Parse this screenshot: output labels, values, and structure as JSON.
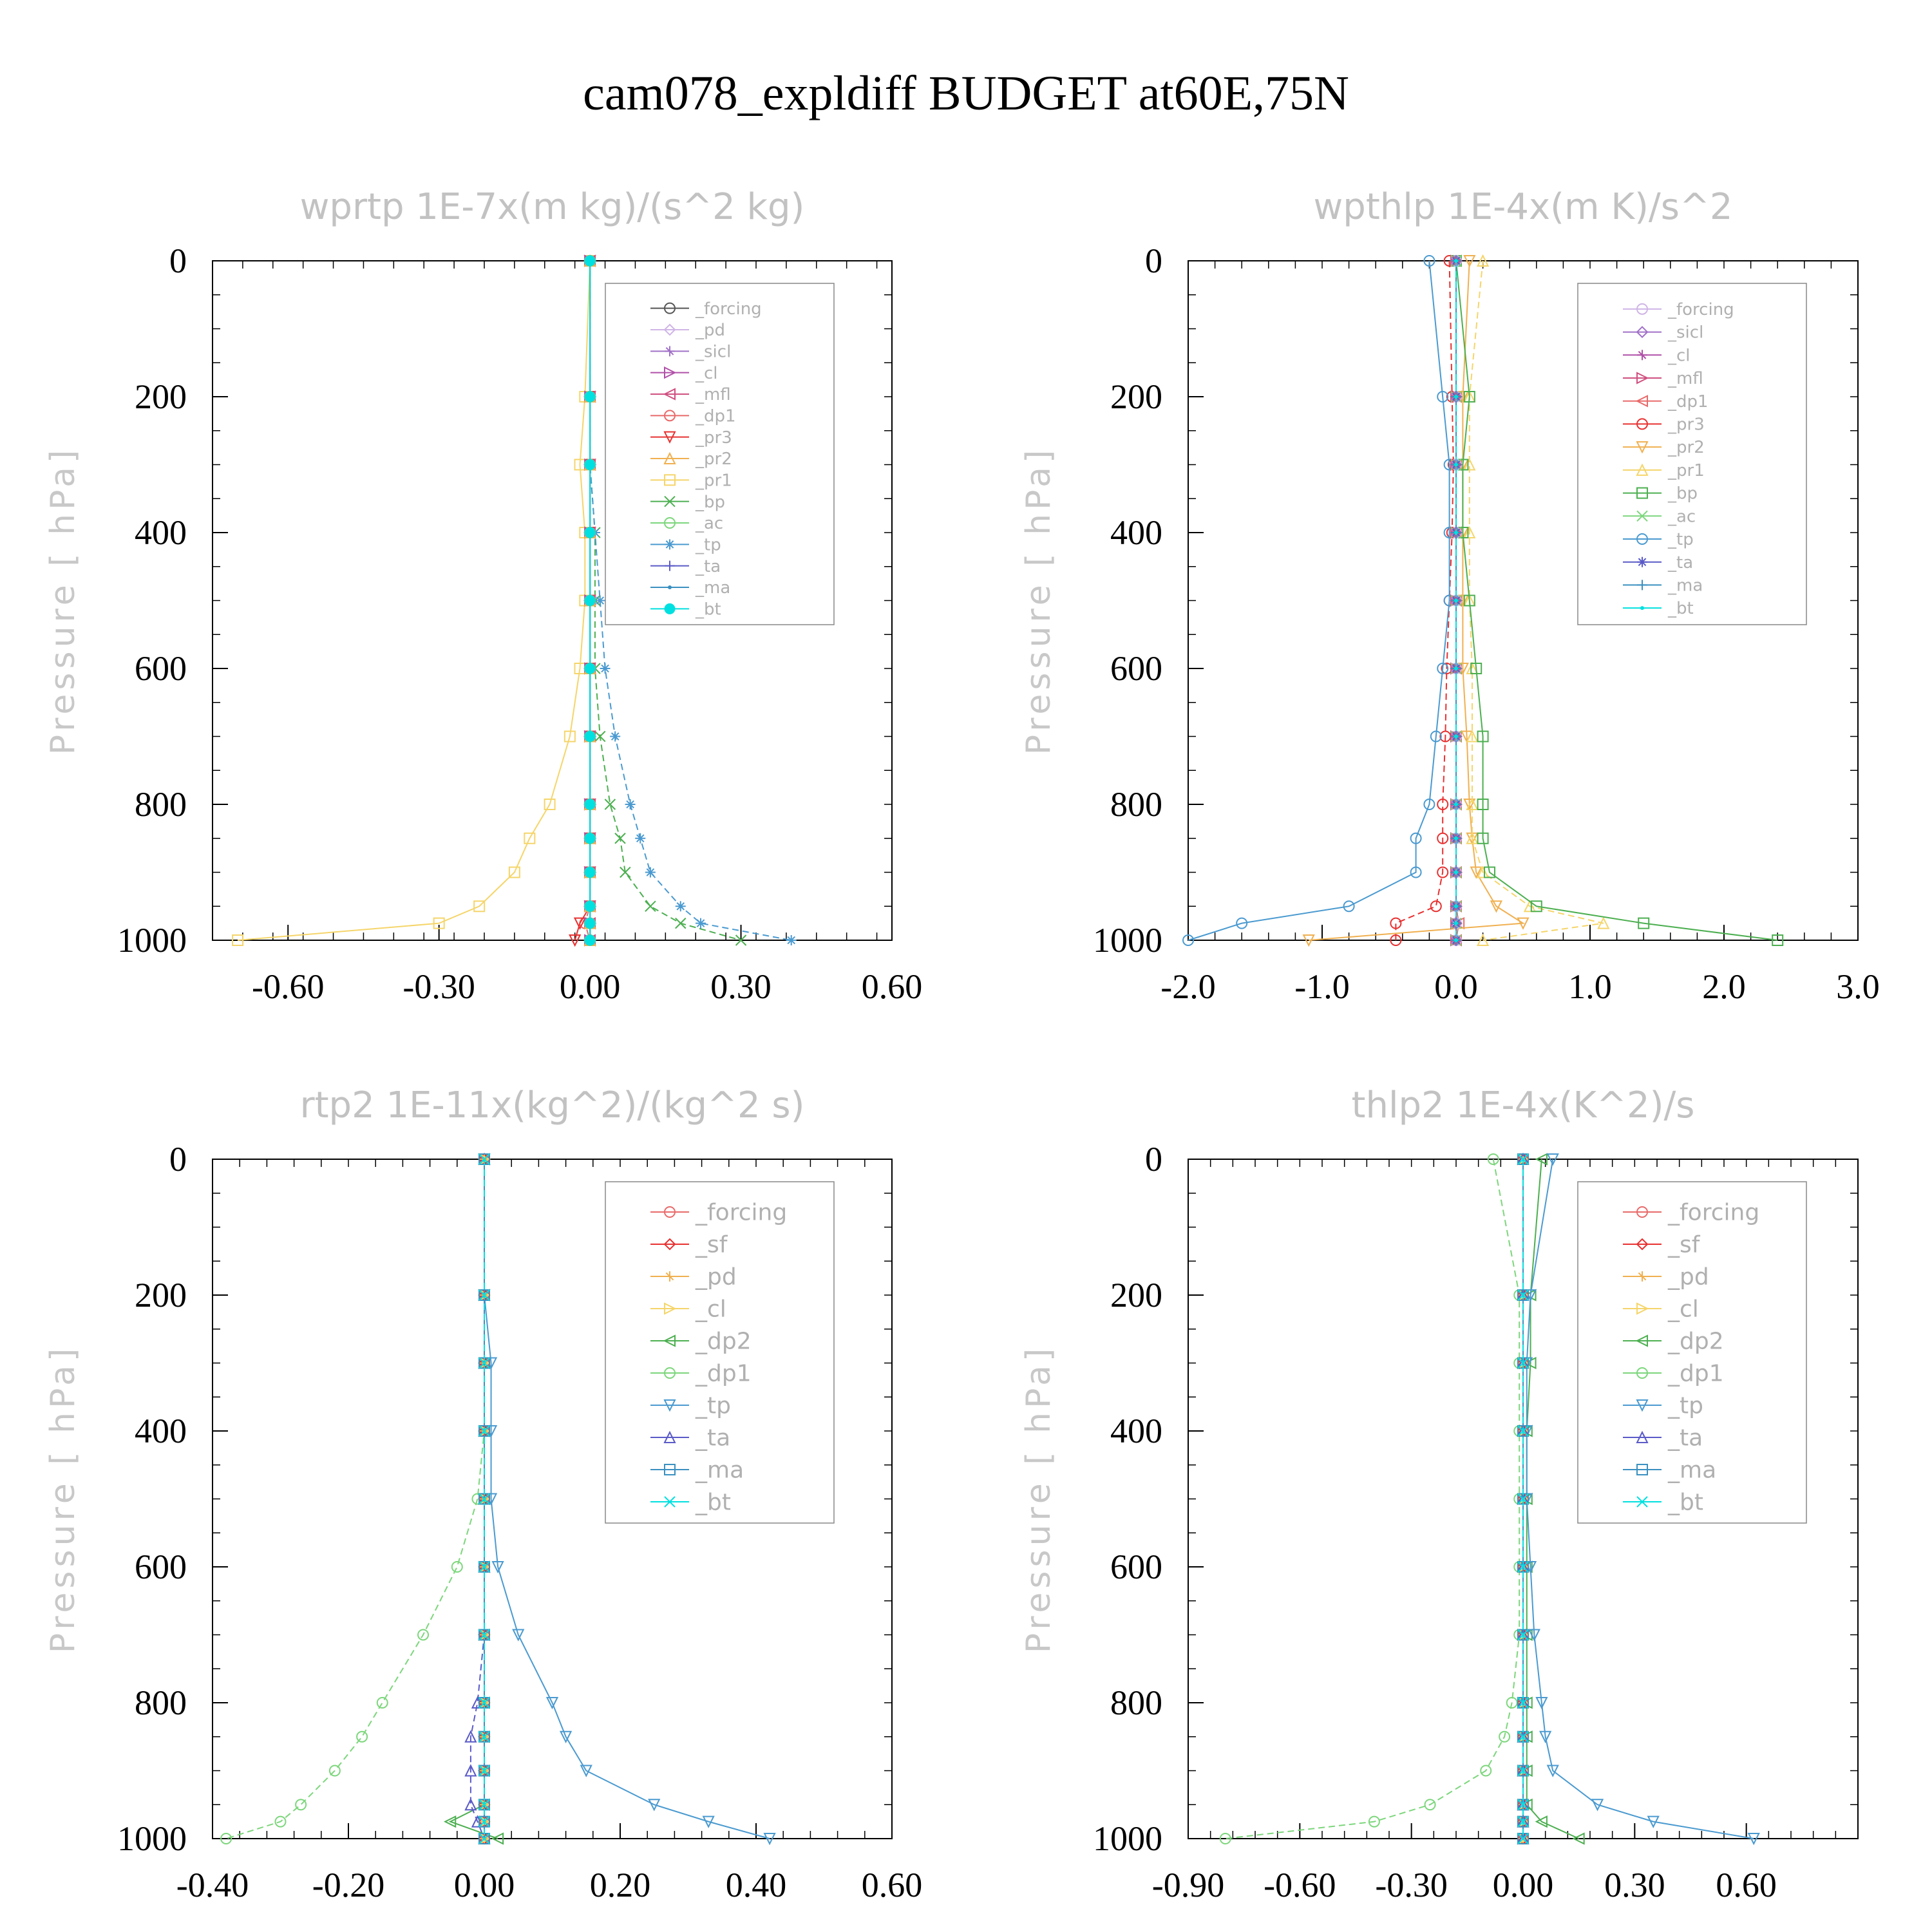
{
  "title": "cam078_expldiff  BUDGET at60E,75N",
  "chart_data": [
    {
      "type": "line",
      "title": "wprtp  1E-7x(m kg)/(s^2 kg)",
      "ylabel": "Pressure [ hPa]",
      "xlabel": "",
      "xlim": [
        -0.75,
        0.6
      ],
      "ylim": [
        1000,
        0
      ],
      "xticks": [
        "-0.60",
        "-0.30",
        "0.00",
        "0.30",
        "0.60"
      ],
      "xtick_values": [
        -0.6,
        -0.3,
        0.0,
        0.3,
        0.6
      ],
      "yticks": [
        "0",
        "200",
        "400",
        "600",
        "800",
        "1000"
      ],
      "yvalues": [
        0,
        200,
        300,
        400,
        500,
        600,
        700,
        800,
        850,
        900,
        950,
        975,
        1000
      ],
      "legend_position": "top-right",
      "series": [
        {
          "name": "_forcing",
          "color": "#555555",
          "values": [
            0,
            0,
            0,
            0,
            0,
            0,
            0,
            0,
            0,
            0,
            0,
            0,
            0
          ]
        },
        {
          "name": "_pd",
          "color": "#cfb5e6",
          "values": [
            0,
            0,
            0,
            0,
            0,
            0,
            0,
            0,
            0,
            0,
            0,
            0,
            0
          ]
        },
        {
          "name": "_sicl",
          "color": "#a070c8",
          "values": [
            0,
            0,
            0,
            0,
            0,
            0,
            0,
            0,
            0,
            0,
            0,
            0,
            0
          ]
        },
        {
          "name": "_cl",
          "color": "#b050a8",
          "values": [
            0,
            0,
            0,
            0,
            0,
            0,
            0,
            0,
            0,
            0,
            0,
            0,
            0
          ]
        },
        {
          "name": "_mfl",
          "color": "#d05080",
          "values": [
            0,
            0,
            0,
            0,
            0,
            0,
            0,
            0,
            0,
            0,
            0,
            0,
            0
          ]
        },
        {
          "name": "_dp1",
          "color": "#e86a6a",
          "values": [
            0,
            0,
            0,
            0,
            0,
            0,
            0,
            0,
            0,
            0,
            0,
            -0.01,
            0
          ]
        },
        {
          "name": "_pr3",
          "color": "#e83030",
          "values": [
            0,
            0,
            0,
            0,
            0,
            0,
            0,
            0,
            0,
            0,
            0,
            -0.02,
            -0.03
          ]
        },
        {
          "name": "_pr2",
          "color": "#f0b050",
          "values": [
            0,
            0,
            0,
            0,
            0,
            0,
            0,
            0,
            0,
            0,
            0,
            0,
            0
          ]
        },
        {
          "name": "_pr1",
          "color": "#f5d56a",
          "values": [
            0,
            -0.01,
            -0.02,
            -0.01,
            -0.01,
            -0.02,
            -0.04,
            -0.08,
            -0.12,
            -0.15,
            -0.22,
            -0.3,
            -0.7
          ]
        },
        {
          "name": "_bp",
          "color": "#4caf50",
          "values": [
            0,
            0,
            0,
            0.01,
            0.01,
            0.01,
            0.02,
            0.04,
            0.06,
            0.07,
            0.12,
            0.18,
            0.3
          ]
        },
        {
          "name": "_ac",
          "color": "#7cd67c",
          "values": [
            0,
            0,
            0,
            0,
            0,
            0,
            0,
            0,
            0,
            0,
            0,
            0,
            0
          ]
        },
        {
          "name": "_tp",
          "color": "#4a9ad0",
          "values": [
            0,
            0,
            0,
            0.01,
            0.02,
            0.03,
            0.05,
            0.08,
            0.1,
            0.12,
            0.18,
            0.22,
            0.4
          ]
        },
        {
          "name": "_ta",
          "color": "#5a5ac8",
          "values": [
            0,
            0,
            0,
            0,
            0,
            0,
            0,
            0,
            0,
            0,
            0,
            0,
            0
          ]
        },
        {
          "name": "_ma",
          "color": "#3a90c0",
          "values": [
            0,
            0,
            0,
            0,
            0,
            0,
            0,
            0,
            0,
            0,
            0,
            0,
            0
          ]
        },
        {
          "name": "_bt",
          "color": "#00e0e0",
          "values": [
            0,
            0,
            0,
            0,
            0,
            0,
            0,
            0,
            0,
            0,
            0,
            0,
            0
          ]
        }
      ]
    },
    {
      "type": "line",
      "title": "wpthlp  1E-4x(m K)/s^2",
      "ylabel": "Pressure [ hPa]",
      "xlabel": "",
      "xlim": [
        -2.0,
        3.0
      ],
      "ylim": [
        1000,
        0
      ],
      "xticks": [
        "-2.0",
        "-1.0",
        "0.0",
        "1.0",
        "2.0",
        "3.0"
      ],
      "xtick_values": [
        -2.0,
        -1.0,
        0.0,
        1.0,
        2.0,
        3.0
      ],
      "yticks": [
        "0",
        "200",
        "400",
        "600",
        "800",
        "1000"
      ],
      "yvalues": [
        0,
        200,
        300,
        400,
        500,
        600,
        700,
        800,
        850,
        900,
        950,
        975,
        1000
      ],
      "legend_position": "top-right",
      "series": [
        {
          "name": "_forcing",
          "color": "#cfb5e6",
          "values": [
            0,
            0,
            0,
            0,
            0,
            0,
            0,
            0,
            0,
            0,
            0,
            0,
            0
          ]
        },
        {
          "name": "_sicl",
          "color": "#a070c8",
          "values": [
            0,
            0,
            0,
            0,
            0,
            0,
            0,
            0,
            0,
            0,
            0,
            0,
            0
          ]
        },
        {
          "name": "_cl",
          "color": "#b050a8",
          "values": [
            0,
            0,
            0,
            0,
            0,
            0,
            0,
            0,
            0,
            0,
            0,
            0,
            0
          ]
        },
        {
          "name": "_mfl",
          "color": "#d05080",
          "values": [
            0,
            0,
            0,
            0,
            0,
            0,
            0,
            0,
            0,
            0,
            0,
            0,
            0
          ]
        },
        {
          "name": "_dp1",
          "color": "#e86a6a",
          "values": [
            0,
            0,
            0,
            0,
            0,
            0,
            0,
            0,
            0,
            0,
            0,
            0.02,
            0
          ]
        },
        {
          "name": "_pr3",
          "color": "#e83030",
          "values": [
            -0.05,
            -0.03,
            -0.02,
            -0.03,
            -0.05,
            -0.07,
            -0.08,
            -0.1,
            -0.1,
            -0.1,
            -0.15,
            -0.45,
            -0.45
          ]
        },
        {
          "name": "_pr2",
          "color": "#f0b050",
          "values": [
            0.1,
            0.05,
            0.05,
            0.05,
            0.05,
            0.05,
            0.08,
            0.1,
            0.12,
            0.15,
            0.3,
            0.5,
            -1.1
          ]
        },
        {
          "name": "_pr1",
          "color": "#f5d56a",
          "values": [
            0.2,
            0.1,
            0.1,
            0.1,
            0.1,
            0.12,
            0.12,
            0.12,
            0.12,
            0.2,
            0.55,
            1.1,
            0.2
          ]
        },
        {
          "name": "_bp",
          "color": "#4caf50",
          "values": [
            0,
            0.1,
            0.05,
            0.05,
            0.1,
            0.15,
            0.2,
            0.2,
            0.2,
            0.25,
            0.6,
            1.4,
            2.4
          ]
        },
        {
          "name": "_ac",
          "color": "#7cd67c",
          "values": [
            0,
            0,
            0,
            0,
            0,
            0,
            0,
            0,
            0,
            0,
            0,
            0,
            0
          ]
        },
        {
          "name": "_tp",
          "color": "#4a9ad0",
          "values": [
            -0.2,
            -0.1,
            -0.05,
            -0.05,
            -0.05,
            -0.1,
            -0.15,
            -0.2,
            -0.3,
            -0.3,
            -0.8,
            -1.6,
            -2.0
          ]
        },
        {
          "name": "_ta",
          "color": "#5a5ac8",
          "values": [
            0,
            0,
            0,
            0,
            0,
            0,
            0,
            0,
            0,
            0,
            0,
            0,
            0
          ]
        },
        {
          "name": "_ma",
          "color": "#3a90c0",
          "values": [
            0,
            0,
            0,
            0,
            0,
            0,
            0,
            0,
            0,
            0,
            0,
            0,
            0
          ]
        },
        {
          "name": "_bt",
          "color": "#00e0e0",
          "values": [
            0,
            0,
            0,
            0,
            0,
            0,
            0,
            0,
            0,
            0,
            0,
            0,
            0
          ]
        }
      ]
    },
    {
      "type": "line",
      "title": "rtp2  1E-11x(kg^2)/(kg^2 s)",
      "ylabel": "Pressure [ hPa]",
      "xlabel": "",
      "xlim": [
        -0.4,
        0.6
      ],
      "ylim": [
        1000,
        0
      ],
      "xticks": [
        "-0.40",
        "-0.20",
        "0.00",
        "0.20",
        "0.40",
        "0.60"
      ],
      "xtick_values": [
        -0.4,
        -0.2,
        0.0,
        0.2,
        0.4,
        0.6
      ],
      "yticks": [
        "0",
        "200",
        "400",
        "600",
        "800",
        "1000"
      ],
      "yvalues": [
        0,
        200,
        300,
        400,
        500,
        600,
        700,
        800,
        850,
        900,
        950,
        975,
        1000
      ],
      "legend_position": "top-right",
      "series": [
        {
          "name": "_forcing",
          "color": "#e86a6a",
          "values": [
            0,
            0,
            0,
            0,
            0,
            0,
            0,
            0,
            0,
            0,
            0,
            0,
            0
          ]
        },
        {
          "name": "_sf",
          "color": "#e83030",
          "values": [
            0,
            0,
            0,
            0,
            0,
            0,
            0,
            0,
            0,
            0,
            0,
            0,
            0
          ]
        },
        {
          "name": "_pd",
          "color": "#f0b050",
          "values": [
            0,
            0,
            0,
            0,
            0,
            0,
            0,
            0,
            0,
            0,
            0,
            0,
            0
          ]
        },
        {
          "name": "_cl",
          "color": "#f5d56a",
          "values": [
            0,
            0,
            0,
            0,
            0,
            0,
            0,
            0,
            0,
            0,
            0,
            0,
            0
          ]
        },
        {
          "name": "_dp2",
          "color": "#4caf50",
          "values": [
            0,
            0,
            0,
            0,
            0,
            0,
            0,
            0,
            0,
            0,
            0,
            -0.05,
            0.02
          ]
        },
        {
          "name": "_dp1",
          "color": "#7cd67c",
          "values": [
            0,
            0,
            0,
            0,
            -0.01,
            -0.04,
            -0.09,
            -0.15,
            -0.18,
            -0.22,
            -0.27,
            -0.3,
            -0.38
          ]
        },
        {
          "name": "_tp",
          "color": "#4a9ad0",
          "values": [
            0,
            0,
            0.01,
            0.01,
            0.01,
            0.02,
            0.05,
            0.1,
            0.12,
            0.15,
            0.25,
            0.33,
            0.42
          ]
        },
        {
          "name": "_ta",
          "color": "#5a5ac8",
          "values": [
            0,
            0,
            0,
            0,
            0,
            0,
            0,
            -0.01,
            -0.02,
            -0.02,
            -0.02,
            -0.01,
            0
          ]
        },
        {
          "name": "_ma",
          "color": "#3a90c0",
          "values": [
            0,
            0,
            0,
            0,
            0,
            0,
            0,
            0,
            0,
            0,
            0,
            0,
            0
          ]
        },
        {
          "name": "_bt",
          "color": "#00e0e0",
          "values": [
            0,
            0,
            0,
            0,
            0,
            0,
            0,
            0,
            0,
            0,
            0,
            0,
            0
          ]
        }
      ]
    },
    {
      "type": "line",
      "title": "thlp2  1E-4x(K^2)/s",
      "ylabel": "Pressure [ hPa]",
      "xlabel": "",
      "xlim": [
        -0.9,
        0.9
      ],
      "ylim": [
        1000,
        0
      ],
      "xticks": [
        "-0.90",
        "-0.60",
        "-0.30",
        "0.00",
        "0.30",
        "0.60"
      ],
      "xtick_values": [
        -0.9,
        -0.6,
        -0.3,
        0.0,
        0.3,
        0.6
      ],
      "yticks": [
        "0",
        "200",
        "400",
        "600",
        "800",
        "1000"
      ],
      "yvalues": [
        0,
        200,
        300,
        400,
        500,
        600,
        700,
        800,
        850,
        900,
        950,
        975,
        1000
      ],
      "legend_position": "top-right",
      "series": [
        {
          "name": "_forcing",
          "color": "#e86a6a",
          "values": [
            0,
            0,
            0,
            0,
            0,
            0,
            0,
            0,
            0,
            0,
            0,
            0,
            0
          ]
        },
        {
          "name": "_sf",
          "color": "#e83030",
          "values": [
            0,
            0,
            0,
            0,
            0,
            0,
            0,
            0,
            0,
            0,
            0,
            0,
            0
          ]
        },
        {
          "name": "_pd",
          "color": "#f0b050",
          "values": [
            0,
            0,
            0,
            0,
            0,
            0,
            0,
            0,
            0,
            0,
            0,
            0,
            0
          ]
        },
        {
          "name": "_cl",
          "color": "#f5d56a",
          "values": [
            0,
            0,
            0,
            0,
            0,
            0,
            0,
            0,
            0,
            0,
            0,
            0,
            0
          ]
        },
        {
          "name": "_dp2",
          "color": "#4caf50",
          "values": [
            0.05,
            0.02,
            0.02,
            0.01,
            0.01,
            0.01,
            0.01,
            0.01,
            0.01,
            0.01,
            0.01,
            0.05,
            0.15
          ]
        },
        {
          "name": "_dp1",
          "color": "#7cd67c",
          "values": [
            -0.08,
            -0.01,
            -0.01,
            -0.01,
            -0.01,
            -0.01,
            -0.01,
            -0.03,
            -0.05,
            -0.1,
            -0.25,
            -0.4,
            -0.8
          ]
        },
        {
          "name": "_tp",
          "color": "#4a9ad0",
          "values": [
            0.08,
            0.02,
            0.01,
            0.01,
            0.01,
            0.02,
            0.03,
            0.05,
            0.06,
            0.08,
            0.2,
            0.35,
            0.62
          ]
        },
        {
          "name": "_ta",
          "color": "#5a5ac8",
          "values": [
            0,
            0,
            0,
            0,
            0,
            0,
            0,
            0,
            0,
            0,
            0,
            0,
            0
          ]
        },
        {
          "name": "_ma",
          "color": "#3a90c0",
          "values": [
            0,
            0,
            0,
            0,
            0,
            0,
            0,
            0,
            0,
            0,
            0,
            0,
            0
          ]
        },
        {
          "name": "_bt",
          "color": "#00e0e0",
          "values": [
            0,
            0,
            0,
            0,
            0,
            0,
            0,
            0,
            0,
            0,
            0,
            0,
            0
          ]
        }
      ]
    }
  ]
}
